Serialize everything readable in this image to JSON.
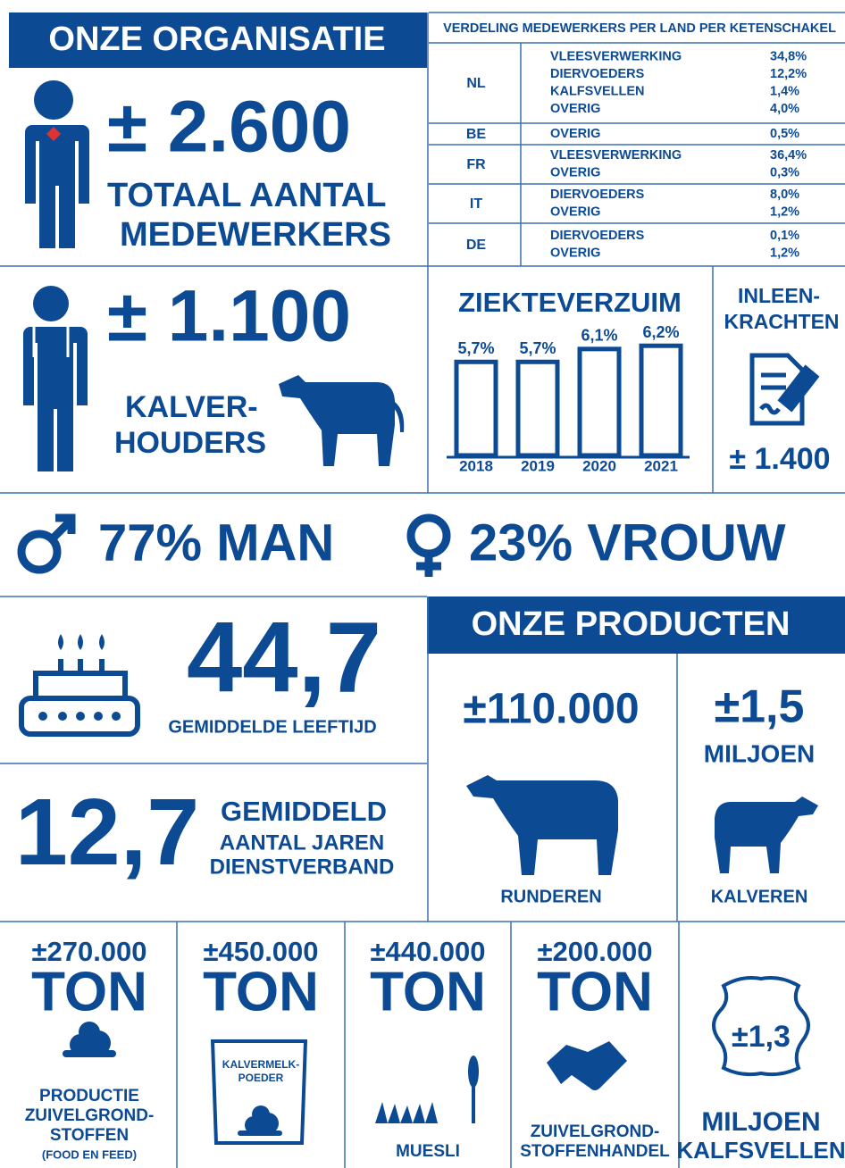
{
  "organisatie": {
    "title": "ONZE ORGANISATIE",
    "value": "± 2.600",
    "label": [
      "TOTAAL AANTAL",
      "MEDEWERKERS"
    ]
  },
  "verdeling": {
    "title": "VERDELING MEDEWERKERS PER LAND PER KETENSCHAKEL",
    "rows": [
      {
        "country": "NL",
        "items": [
          [
            "VLEESVERWERKING",
            "34,8%"
          ],
          [
            "DIERVOEDERS",
            "12,2%"
          ],
          [
            "KALFSVELLEN",
            "1,4%"
          ],
          [
            "OVERIG",
            "4,0%"
          ]
        ]
      },
      {
        "country": "BE",
        "items": [
          [
            "OVERIG",
            "0,5%"
          ]
        ]
      },
      {
        "country": "FR",
        "items": [
          [
            "VLEESVERWERKING",
            "36,4%"
          ],
          [
            "OVERIG",
            "0,3%"
          ]
        ]
      },
      {
        "country": "IT",
        "items": [
          [
            "DIERVOEDERS",
            "8,0%"
          ],
          [
            "OVERIG",
            "1,2%"
          ]
        ]
      },
      {
        "country": "DE",
        "items": [
          [
            "DIERVOEDERS",
            "0,1%"
          ],
          [
            "OVERIG",
            "1,2%"
          ]
        ]
      }
    ]
  },
  "kalverhouders": {
    "value": "± 1.100",
    "label": [
      "KALVER-",
      "HOUDERS"
    ]
  },
  "chart_data": {
    "type": "bar",
    "title": "ZIEKTEVERZUIM",
    "categories": [
      "2018",
      "2019",
      "2020",
      "2021"
    ],
    "values": [
      5.7,
      5.7,
      6.1,
      6.2
    ],
    "value_labels": [
      "5,7%",
      "5,7%",
      "6,1%",
      "6,2%"
    ],
    "color": "#0d4a94",
    "ylim": [
      2.8,
      6.4
    ]
  },
  "inleen": {
    "label": [
      "INLEEN-",
      "KRACHTEN"
    ],
    "value": "± 1.400"
  },
  "gender": {
    "man": "77% MAN",
    "vrouw": "23% VROUW"
  },
  "age": {
    "value": "44,7",
    "label": "GEMIDDELDE LEEFTIJD"
  },
  "tenure": {
    "value": "12,7",
    "label": [
      "GEMIDDELD",
      "AANTAL JAREN",
      "DIENSTVERBAND"
    ]
  },
  "producten": {
    "title": "ONZE PRODUCTEN",
    "runderen": {
      "value": "±110.000",
      "label": "RUNDEREN"
    },
    "kalveren": {
      "value": "±1,5",
      "unit": "MILJOEN",
      "label": "KALVEREN"
    }
  },
  "bottom": [
    {
      "value": "±270.000",
      "unit": "TON",
      "label": [
        "PRODUCTIE",
        "ZUIVELGROND-",
        "STOFFEN"
      ],
      "note": "(FOOD EN FEED)"
    },
    {
      "value": "±450.000",
      "unit": "TON",
      "bag": [
        "KALVERMELK-",
        "POEDER"
      ]
    },
    {
      "value": "±440.000",
      "unit": "TON",
      "label": [
        "MUESLI"
      ]
    },
    {
      "value": "±200.000",
      "unit": "TON",
      "label": [
        "ZUIVELGROND-",
        "STOFFENHANDEL"
      ]
    },
    {
      "value": "±1,3",
      "label": [
        "MILJOEN",
        "KALFSVELLEN"
      ]
    }
  ]
}
